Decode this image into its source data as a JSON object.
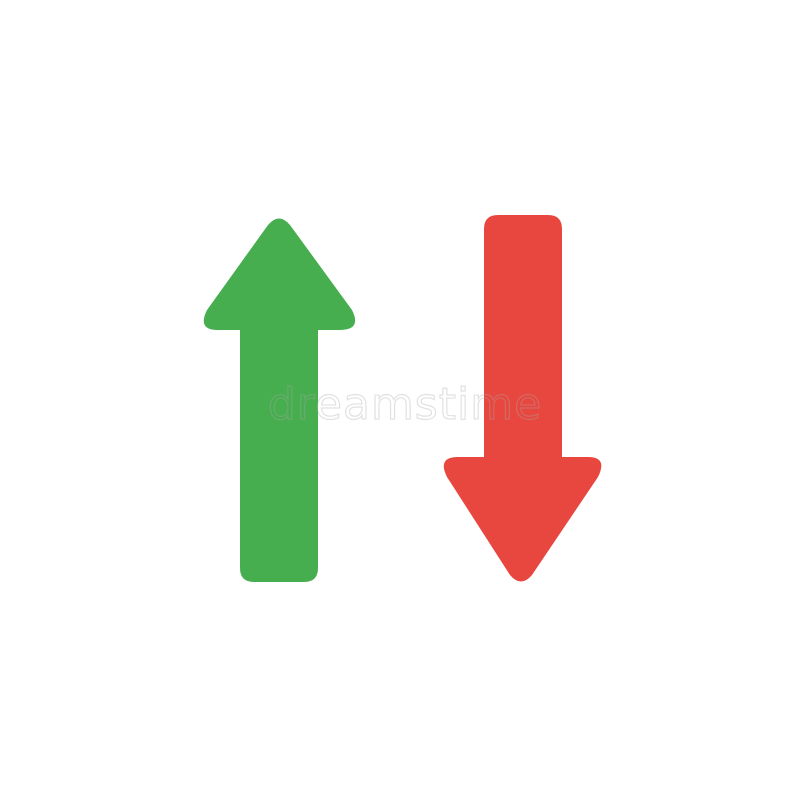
{
  "watermark": {
    "text": "dreamstime"
  },
  "arrows": {
    "up": {
      "icon": "arrow-up-icon",
      "color": "#46AE4E"
    },
    "down": {
      "icon": "arrow-down-icon",
      "color": "#E8473F"
    }
  },
  "background_color": "#FFFFFF"
}
